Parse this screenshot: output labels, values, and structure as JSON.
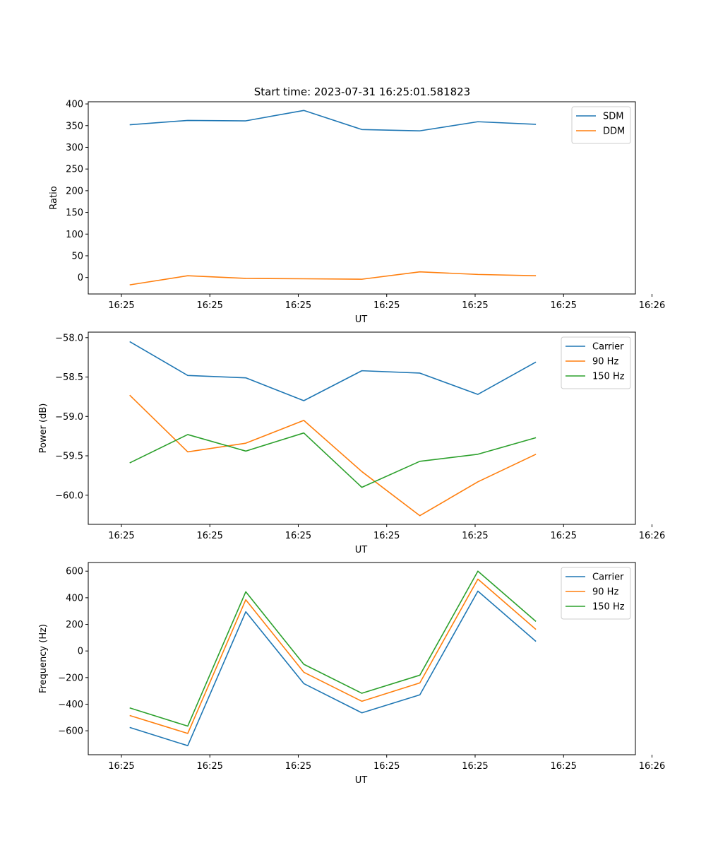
{
  "title": "Start time: 2023-07-31 16:25:01.581823",
  "colors": {
    "series1": "#1f77b4",
    "series2": "#ff7f0e",
    "series3": "#2ca02c",
    "axes": "#000000",
    "legend_border": "#cccccc"
  },
  "chart_data": [
    {
      "type": "line",
      "title": "Start time: 2023-07-31 16:25:01.581823",
      "xlabel": "UT",
      "ylabel": "Ratio",
      "xlim": [
        -0.6,
        9.3
      ],
      "ylim": [
        -38,
        405
      ],
      "x": [
        0.15,
        1.2,
        2.25,
        3.3,
        4.35,
        5.4,
        6.45,
        7.5
      ],
      "x_ticks": [
        0,
        1.6,
        3.2,
        4.8,
        6.4,
        8.0,
        9.6
      ],
      "x_tick_labels": [
        "16:25",
        "16:25",
        "16:25",
        "16:25",
        "16:25",
        "16:25",
        "16:26"
      ],
      "y_ticks": [
        0,
        50,
        100,
        150,
        200,
        250,
        300,
        350,
        400
      ],
      "y_tick_labels": [
        "0",
        "50",
        "100",
        "150",
        "200",
        "250",
        "300",
        "350",
        "400"
      ],
      "legend_position": "upper-right",
      "series": [
        {
          "name": "SDM",
          "color": "#1f77b4",
          "values": [
            352,
            362,
            361,
            385,
            341,
            338,
            359,
            353
          ]
        },
        {
          "name": "DDM",
          "color": "#ff7f0e",
          "values": [
            -17,
            4,
            -2,
            -3,
            -4,
            13,
            7,
            4
          ]
        }
      ]
    },
    {
      "type": "line",
      "title": "",
      "xlabel": "UT",
      "ylabel": "Power (dB)",
      "xlim": [
        -0.6,
        9.3
      ],
      "ylim": [
        -60.37,
        -57.93
      ],
      "x": [
        0.15,
        1.2,
        2.25,
        3.3,
        4.35,
        5.4,
        6.45,
        7.5
      ],
      "x_ticks": [
        0,
        1.6,
        3.2,
        4.8,
        6.4,
        8.0,
        9.6
      ],
      "x_tick_labels": [
        "16:25",
        "16:25",
        "16:25",
        "16:25",
        "16:25",
        "16:25",
        "16:26"
      ],
      "y_ticks": [
        -60.0,
        -59.5,
        -59.0,
        -58.5,
        -58.0
      ],
      "y_tick_labels": [
        "−60.0",
        "−59.5",
        "−59.0",
        "−58.5",
        "−58.0"
      ],
      "legend_position": "upper-right",
      "series": [
        {
          "name": "Carrier",
          "color": "#1f77b4",
          "values": [
            -58.05,
            -58.48,
            -58.51,
            -58.8,
            -58.42,
            -58.45,
            -58.72,
            -58.31
          ]
        },
        {
          "name": "90 Hz",
          "color": "#ff7f0e",
          "values": [
            -58.73,
            -59.45,
            -59.34,
            -59.05,
            -59.7,
            -60.26,
            -59.83,
            -59.48
          ]
        },
        {
          "name": "150 Hz",
          "color": "#2ca02c",
          "values": [
            -59.59,
            -59.23,
            -59.44,
            -59.21,
            -59.9,
            -59.57,
            -59.48,
            -59.27
          ]
        }
      ]
    },
    {
      "type": "line",
      "title": "",
      "xlabel": "UT",
      "ylabel": "Frequency (Hz)",
      "xlim": [
        -0.6,
        9.3
      ],
      "ylim": [
        -780,
        665
      ],
      "x": [
        0.15,
        1.2,
        2.25,
        3.3,
        4.35,
        5.4,
        6.45,
        7.5
      ],
      "x_ticks": [
        0,
        1.6,
        3.2,
        4.8,
        6.4,
        8.0,
        9.6
      ],
      "x_tick_labels": [
        "16:25",
        "16:25",
        "16:25",
        "16:25",
        "16:25",
        "16:25",
        "16:26"
      ],
      "y_ticks": [
        -600,
        -400,
        -200,
        0,
        200,
        400,
        600
      ],
      "y_tick_labels": [
        "−600",
        "−400",
        "−200",
        "0",
        "200",
        "400",
        "600"
      ],
      "legend_position": "upper-right",
      "series": [
        {
          "name": "Carrier",
          "color": "#1f77b4",
          "values": [
            -575,
            -712,
            295,
            -245,
            -465,
            -330,
            450,
            72
          ]
        },
        {
          "name": "90 Hz",
          "color": "#ff7f0e",
          "values": [
            -485,
            -620,
            385,
            -160,
            -378,
            -240,
            540,
            162
          ]
        },
        {
          "name": "150 Hz",
          "color": "#2ca02c",
          "values": [
            -428,
            -565,
            445,
            -100,
            -318,
            -182,
            600,
            222
          ]
        }
      ]
    }
  ]
}
